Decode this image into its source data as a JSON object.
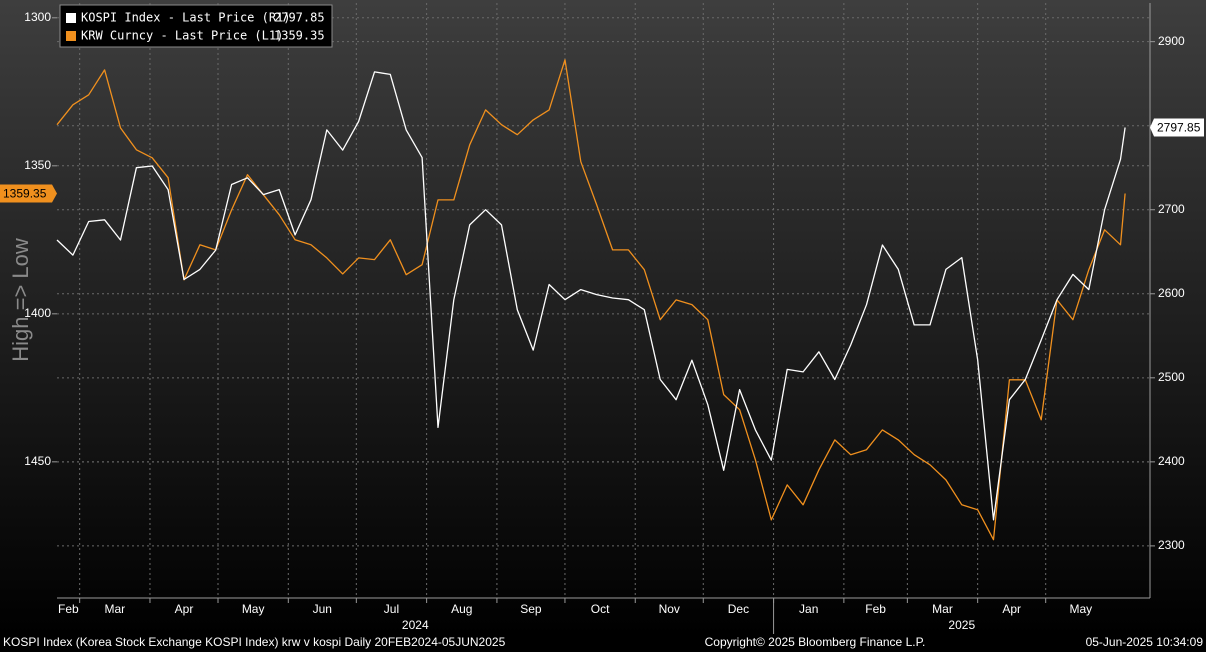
{
  "chart_data": {
    "type": "line",
    "ylabel": "High => Low",
    "x": [
      "2024-02-20",
      "2024-02-27",
      "2024-03-05",
      "2024-03-12",
      "2024-03-19",
      "2024-03-26",
      "2024-04-02",
      "2024-04-09",
      "2024-04-16",
      "2024-04-23",
      "2024-04-30",
      "2024-05-07",
      "2024-05-14",
      "2024-05-21",
      "2024-05-28",
      "2024-06-04",
      "2024-06-11",
      "2024-06-18",
      "2024-06-25",
      "2024-07-02",
      "2024-07-09",
      "2024-07-16",
      "2024-07-23",
      "2024-07-30",
      "2024-08-06",
      "2024-08-13",
      "2024-08-20",
      "2024-08-27",
      "2024-09-03",
      "2024-09-10",
      "2024-09-17",
      "2024-09-24",
      "2024-10-01",
      "2024-10-08",
      "2024-10-15",
      "2024-10-22",
      "2024-10-29",
      "2024-11-05",
      "2024-11-12",
      "2024-11-19",
      "2024-11-26",
      "2024-12-03",
      "2024-12-10",
      "2024-12-17",
      "2024-12-24",
      "2024-12-31",
      "2025-01-07",
      "2025-01-14",
      "2025-01-21",
      "2025-01-28",
      "2025-02-04",
      "2025-02-11",
      "2025-02-18",
      "2025-02-25",
      "2025-03-04",
      "2025-03-11",
      "2025-03-18",
      "2025-03-25",
      "2025-04-01",
      "2025-04-08",
      "2025-04-15",
      "2025-04-22",
      "2025-04-29",
      "2025-05-06",
      "2025-05-13",
      "2025-05-20",
      "2025-05-27",
      "2025-06-03",
      "2025-06-05"
    ],
    "xlim": [
      "2024-02-20",
      "2025-06-16"
    ],
    "xticks": [
      {
        "value": "2024-02-01",
        "label": "Feb"
      },
      {
        "value": "2024-03-01",
        "label": "Mar"
      },
      {
        "value": "2024-04-01",
        "label": "Apr"
      },
      {
        "value": "2024-05-01",
        "label": "May"
      },
      {
        "value": "2024-06-01",
        "label": "Jun"
      },
      {
        "value": "2024-07-01",
        "label": "Jul"
      },
      {
        "value": "2024-08-01",
        "label": "Aug"
      },
      {
        "value": "2024-09-01",
        "label": "Sep"
      },
      {
        "value": "2024-10-01",
        "label": "Oct"
      },
      {
        "value": "2024-11-01",
        "label": "Nov"
      },
      {
        "value": "2024-12-01",
        "label": "Dec"
      },
      {
        "value": "2025-01-01",
        "label": "Jan"
      },
      {
        "value": "2025-02-01",
        "label": "Feb"
      },
      {
        "value": "2025-03-01",
        "label": "Mar"
      },
      {
        "value": "2025-04-01",
        "label": "Apr"
      },
      {
        "value": "2025-05-01",
        "label": "May"
      }
    ],
    "years": [
      "2024",
      "2025"
    ],
    "ylim": [
      1496,
      1295
    ],
    "yticks": [
      1300,
      1350,
      1400,
      1450
    ],
    "y2lim": [
      2238,
      2946
    ],
    "y2ticks": [
      2300,
      2400,
      2500,
      2600,
      2700,
      2800,
      2900
    ],
    "grid": true,
    "legend": "upper left",
    "series": [
      {
        "name": "KOSPI Index - Last Price (R1)",
        "color": "#ffffff",
        "axis": "y2",
        "values": [
          2664,
          2646,
          2686,
          2688,
          2664,
          2750,
          2752,
          2724,
          2617,
          2629,
          2652,
          2730,
          2738,
          2718,
          2724,
          2670,
          2712,
          2795,
          2771,
          2805,
          2864,
          2861,
          2795,
          2762,
          2441,
          2593,
          2682,
          2700,
          2682,
          2581,
          2533,
          2611,
          2593,
          2605,
          2599,
          2595,
          2593,
          2581,
          2498,
          2474,
          2521,
          2468,
          2390,
          2486,
          2438,
          2402,
          2510,
          2507,
          2531,
          2498,
          2539,
          2587,
          2658,
          2629,
          2563,
          2563,
          2629,
          2643,
          2521,
          2331,
          2474,
          2498,
          2545,
          2593,
          2623,
          2605,
          2700,
          2760,
          2797.85
        ]
      },
      {
        "name": "KRW Curncy - Last Price (L1)",
        "color": "#f0901e",
        "values": [
          1336.1,
          1329.4,
          1326.0,
          1317.6,
          1337.2,
          1344.6,
          1347.3,
          1354.0,
          1388.5,
          1376.7,
          1378.4,
          1364.9,
          1353.0,
          1359.8,
          1366.5,
          1375.0,
          1376.7,
          1381.1,
          1386.5,
          1381.1,
          1381.7,
          1375.0,
          1386.8,
          1383.4,
          1361.5,
          1361.5,
          1342.9,
          1331.1,
          1336.1,
          1339.5,
          1334.5,
          1331.1,
          1314.2,
          1348.6,
          1363.2,
          1378.4,
          1378.4,
          1385.1,
          1402.0,
          1395.3,
          1396.9,
          1402.0,
          1427.3,
          1432.4,
          1449.3,
          1469.6,
          1457.8,
          1464.5,
          1452.7,
          1442.6,
          1447.6,
          1445.9,
          1439.2,
          1442.6,
          1447.6,
          1451.0,
          1456.1,
          1464.5,
          1466.2,
          1476.3,
          1422.3,
          1422.3,
          1435.8,
          1395.3,
          1402.0,
          1385.1,
          1371.6,
          1376.7,
          1359.35
        ]
      }
    ]
  },
  "footer": {
    "left": "KOSPI Index (Korea Stock Exchange KOSPI Index) krw v kospi  Daily 20FEB2024-05JUN2025",
    "center": "Copyright© 2025 Bloomberg Finance L.P.",
    "right": "05-Jun-2025 10:34:09"
  }
}
